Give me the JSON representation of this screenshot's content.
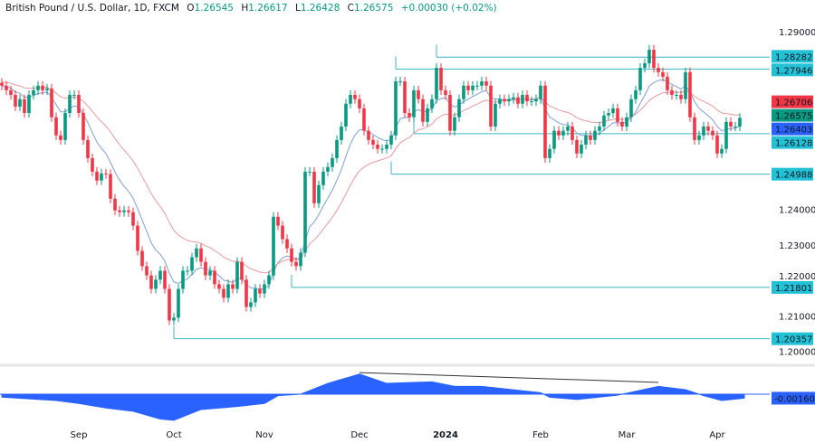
{
  "header": {
    "symbol": "British Pound / U.S. Dollar, 1D, FXCM",
    "open_label": "O",
    "open": "1.26545",
    "high_label": "H",
    "high": "1.26617",
    "low_label": "L",
    "low": "1.26428",
    "close_label": "C",
    "close": "1.26575",
    "change": "+0.00030 (+0.02%)"
  },
  "colors": {
    "up": "#089981",
    "down": "#f23645",
    "ma_fast": "#7f9fd6",
    "ma_slow": "#e59a9f",
    "level_line": "#3fb6c1",
    "level_label_bg": "#22c1d6",
    "oscillator": "#2962ff"
  },
  "chart_data": {
    "type": "candlestick",
    "title": "British Pound / U.S. Dollar, 1D, FXCM",
    "ylim": [
      1.196,
      1.2985
    ],
    "grid": false,
    "closes": [
      1.2748,
      1.2735,
      1.2722,
      1.2689,
      1.271,
      1.2671,
      1.2722,
      1.2735,
      1.2748,
      1.2735,
      1.274,
      1.2659,
      1.2608,
      1.2595,
      1.2671,
      1.2722,
      1.2722,
      1.2671,
      1.2595,
      1.2544,
      1.2506,
      1.2481,
      1.2501,
      1.2499,
      1.243,
      1.2397,
      1.2392,
      1.2397,
      1.2392,
      1.2354,
      1.2283,
      1.224,
      1.2214,
      1.2176,
      1.2202,
      1.2227,
      1.2176,
      1.2087,
      1.2095,
      1.2176,
      1.2227,
      1.2227,
      1.2265,
      1.229,
      1.2252,
      1.2214,
      1.2227,
      1.2189,
      1.2176,
      1.2151,
      1.2189,
      1.2176,
      1.2252,
      1.2202,
      1.2125,
      1.2138,
      1.2176,
      1.2163,
      1.2189,
      1.2214,
      1.2379,
      1.2354,
      1.2316,
      1.229,
      1.2252,
      1.224,
      1.2278,
      1.2506,
      1.2506,
      1.2417,
      1.2468,
      1.2506,
      1.2519,
      1.2544,
      1.2595,
      1.2633,
      1.2697,
      1.2722,
      1.271,
      1.2684,
      1.2621,
      1.2595,
      1.2582,
      1.257,
      1.257,
      1.2582,
      1.2608,
      1.276,
      1.276,
      1.2671,
      1.2659,
      1.2735,
      1.271,
      1.2646,
      1.2684,
      1.271,
      1.2798,
      1.2735,
      1.2722,
      1.2621,
      1.2659,
      1.271,
      1.2748,
      1.2735,
      1.2748,
      1.2748,
      1.276,
      1.2748,
      1.2633,
      1.2697,
      1.271,
      1.2704,
      1.271,
      1.2715,
      1.2697,
      1.2722,
      1.2704,
      1.2704,
      1.271,
      1.2748,
      1.2544,
      1.257,
      1.2621,
      1.2608,
      1.2621,
      1.2633,
      1.2595,
      1.2557,
      1.2582,
      1.2608,
      1.2595,
      1.2621,
      1.2633,
      1.2664,
      1.2671,
      1.2684,
      1.2646,
      1.2633,
      1.2659,
      1.271,
      1.2735,
      1.2798,
      1.2811,
      1.2849,
      1.2798,
      1.2786,
      1.2773,
      1.2735,
      1.2722,
      1.2722,
      1.271,
      1.2786,
      1.2659,
      1.2595,
      1.2608,
      1.2633,
      1.2621,
      1.2608,
      1.2557,
      1.257,
      1.2646,
      1.2633,
      1.2633,
      1.26575
    ],
    "y_ticks": [
      "1.29000",
      "1.24000",
      "1.23000",
      "1.22000",
      "1.21000",
      "1.20000"
    ],
    "x_ticks": [
      {
        "label": "Sep",
        "index": 17,
        "bold": false
      },
      {
        "label": "Oct",
        "index": 38,
        "bold": false
      },
      {
        "label": "Nov",
        "index": 58,
        "bold": false
      },
      {
        "label": "Dec",
        "index": 79,
        "bold": false
      },
      {
        "label": "2024",
        "index": 98,
        "bold": true
      },
      {
        "label": "Feb",
        "index": 119,
        "bold": false
      },
      {
        "label": "Mar",
        "index": 138,
        "bold": false
      },
      {
        "label": "Apr",
        "index": 158,
        "bold": false
      }
    ],
    "levels": [
      {
        "price": 1.28282,
        "label": "1.28282",
        "from_index": 96
      },
      {
        "price": 1.27946,
        "label": "1.27946",
        "from_index": 87
      },
      {
        "price": 1.26128,
        "label": "1.26128",
        "from_index": 91
      },
      {
        "price": 1.24988,
        "label": "1.24988",
        "from_index": 86
      },
      {
        "price": 1.21801,
        "label": "1.21801",
        "from_index": 64
      },
      {
        "price": 1.20357,
        "label": "1.20357",
        "from_index": 38
      }
    ],
    "price_labels": [
      {
        "name": "ma-slow-value",
        "value": "1.26706",
        "bg": "#f23645"
      },
      {
        "name": "last-price",
        "value": "1.26575",
        "bg": "#089981"
      },
      {
        "name": "ma-fast-value",
        "value": "1.26403",
        "bg": "#2962ff"
      }
    ],
    "oscillator": {
      "current_label": "-0.00160",
      "points": [
        [
          0,
          -0.0012
        ],
        [
          12,
          -0.0025
        ],
        [
          17,
          -0.0037
        ],
        [
          23,
          -0.0055
        ],
        [
          29,
          -0.0068
        ],
        [
          35,
          -0.0099
        ],
        [
          38,
          -0.0104
        ],
        [
          44,
          -0.0061
        ],
        [
          52,
          -0.0049
        ],
        [
          58,
          -0.0037
        ],
        [
          61,
          -0.0006
        ],
        [
          66,
          0.0
        ],
        [
          72,
          0.0043
        ],
        [
          79,
          0.008
        ],
        [
          85,
          0.0043
        ],
        [
          95,
          0.0049
        ],
        [
          100,
          0.0031
        ],
        [
          106,
          0.0031
        ],
        [
          119,
          0.0006
        ],
        [
          121,
          -0.0012
        ],
        [
          127,
          -0.0021
        ],
        [
          136,
          -0.0004
        ],
        [
          145,
          0.0031
        ],
        [
          151,
          0.0018
        ],
        [
          155,
          -0.0006
        ],
        [
          159,
          -0.0025
        ],
        [
          164,
          -0.0016
        ]
      ],
      "trendline": [
        [
          79,
          0.0086
        ],
        [
          145,
          0.0047
        ]
      ],
      "ylim": [
        -0.0125,
        0.0105
      ]
    }
  }
}
